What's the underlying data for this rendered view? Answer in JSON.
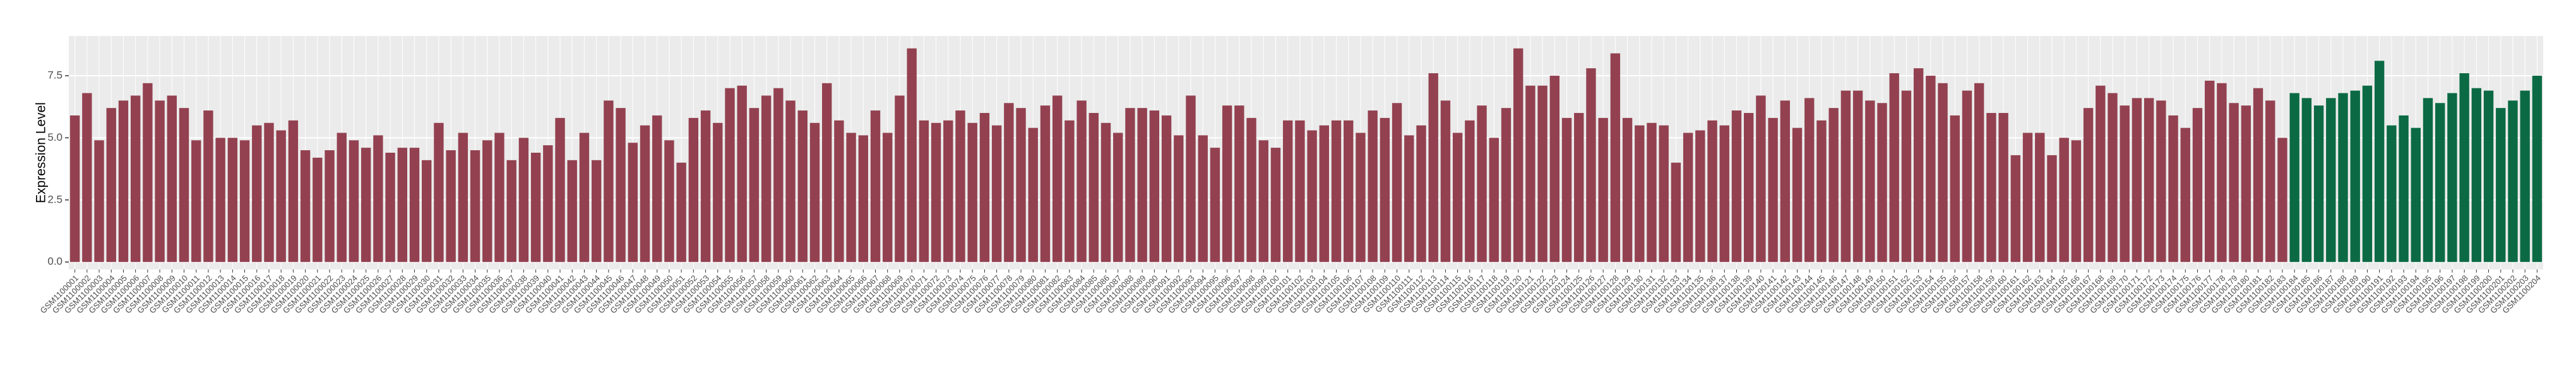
{
  "chart_data": {
    "type": "bar",
    "ylabel": "Expression Level",
    "ylim": [
      -0.3,
      9.1
    ],
    "yticks": [
      {
        "value": 0,
        "label": "0.0"
      },
      2.5,
      {
        "value": 5,
        "label": "5.0"
      },
      7.5
    ],
    "grid": true,
    "categories": [
      "GSM1100001",
      "GSM1100002",
      "GSM1100003",
      "GSM1100004",
      "GSM1100005",
      "GSM1100006",
      "GSM1100007",
      "GSM1100008",
      "GSM1100009",
      "GSM1100010",
      "GSM1100011",
      "GSM1100012",
      "GSM1100013",
      "GSM1100014",
      "GSM1100015",
      "GSM1100016",
      "GSM1100017",
      "GSM1100018",
      "GSM1100019",
      "GSM1100020",
      "GSM1100021",
      "GSM1100022",
      "GSM1100023",
      "GSM1100024",
      "GSM1100025",
      "GSM1100026",
      "GSM1100027",
      "GSM1100028",
      "GSM1100029",
      "GSM1100030",
      "GSM1100031",
      "GSM1100032",
      "GSM1100033",
      "GSM1100034",
      "GSM1100035",
      "GSM1100036",
      "GSM1100037",
      "GSM1100038",
      "GSM1100039",
      "GSM1100040",
      "GSM1100041",
      "GSM1100042",
      "GSM1100043",
      "GSM1100044",
      "GSM1100045",
      "GSM1100046",
      "GSM1100047",
      "GSM1100048",
      "GSM1100049",
      "GSM1100050",
      "GSM1100051",
      "GSM1100052",
      "GSM1100053",
      "GSM1100054",
      "GSM1100055",
      "GSM1100056",
      "GSM1100057",
      "GSM1100058",
      "GSM1100059",
      "GSM1100060",
      "GSM1100061",
      "GSM1100062",
      "GSM1100063",
      "GSM1100064",
      "GSM1100065",
      "GSM1100066",
      "GSM1100067",
      "GSM1100068",
      "GSM1100069",
      "GSM1100070",
      "GSM1100071",
      "GSM1100072",
      "GSM1100073",
      "GSM1100074",
      "GSM1100075",
      "GSM1100076",
      "GSM1100077",
      "GSM1100078",
      "GSM1100079",
      "GSM1100080",
      "GSM1100081",
      "GSM1100082",
      "GSM1100083",
      "GSM1100084",
      "GSM1100085",
      "GSM1100086",
      "GSM1100087",
      "GSM1100088",
      "GSM1100089",
      "GSM1100090",
      "GSM1100091",
      "GSM1100092",
      "GSM1100093",
      "GSM1100094",
      "GSM1100095",
      "GSM1100096",
      "GSM1100097",
      "GSM1100098",
      "GSM1100099",
      "GSM1100100",
      "GSM1100101",
      "GSM1100102",
      "GSM1100103",
      "GSM1100104",
      "GSM1100105",
      "GSM1100106",
      "GSM1100107",
      "GSM1100108",
      "GSM1100109",
      "GSM1100110",
      "GSM1100111",
      "GSM1100112",
      "GSM1100113",
      "GSM1100114",
      "GSM1100115",
      "GSM1100116",
      "GSM1100117",
      "GSM1100118",
      "GSM1100119",
      "GSM1100120",
      "GSM1100121",
      "GSM1100122",
      "GSM1100123",
      "GSM1100124",
      "GSM1100125",
      "GSM1100126",
      "GSM1100127",
      "GSM1100128",
      "GSM1100129",
      "GSM1100130",
      "GSM1100131",
      "GSM1100132",
      "GSM1100133",
      "GSM1100134",
      "GSM1100135",
      "GSM1100136",
      "GSM1100137",
      "GSM1100138",
      "GSM1100139",
      "GSM1100140",
      "GSM1100141",
      "GSM1100142",
      "GSM1100143",
      "GSM1100144",
      "GSM1100145",
      "GSM1100146",
      "GSM1100147",
      "GSM1100148",
      "GSM1100149",
      "GSM1100150",
      "GSM1100151",
      "GSM1100152",
      "GSM1100153",
      "GSM1100154",
      "GSM1100155",
      "GSM1100156",
      "GSM1100157",
      "GSM1100158",
      "GSM1100159",
      "GSM1100160",
      "GSM1100161",
      "GSM1100162",
      "GSM1100163",
      "GSM1100164",
      "GSM1100165",
      "GSM1100166",
      "GSM1100167",
      "GSM1100168",
      "GSM1100169",
      "GSM1100170",
      "GSM1100171",
      "GSM1100172",
      "GSM1100173",
      "GSM1100174",
      "GSM1100175",
      "GSM1100176",
      "GSM1100177",
      "GSM1100178",
      "GSM1100179",
      "GSM1100180",
      "GSM1100181",
      "GSM1100182",
      "GSM1100183",
      "GSM1100184",
      "GSM1100185",
      "GSM1100186",
      "GSM1100187",
      "GSM1100188",
      "GSM1100189",
      "GSM1100190",
      "GSM1100191",
      "GSM1100192",
      "GSM1100193",
      "GSM1100194",
      "GSM1100195",
      "GSM1100196",
      "GSM1100197",
      "GSM1100198",
      "GSM1100199",
      "GSM1100200",
      "GSM1100201",
      "GSM1100202",
      "GSM1100203",
      "GSM1100204"
    ],
    "values": [
      5.9,
      6.8,
      4.9,
      6.2,
      6.5,
      6.7,
      7.2,
      6.5,
      6.7,
      6.2,
      4.9,
      6.1,
      5.0,
      5.0,
      4.9,
      5.5,
      5.6,
      5.3,
      5.7,
      4.5,
      4.2,
      4.5,
      5.2,
      4.9,
      4.6,
      5.1,
      4.4,
      4.6,
      4.6,
      4.1,
      5.6,
      4.5,
      5.2,
      4.5,
      4.9,
      5.2,
      4.1,
      5.0,
      4.4,
      4.7,
      5.8,
      4.1,
      5.2,
      4.1,
      6.5,
      6.2,
      4.8,
      5.5,
      5.9,
      4.9,
      4.0,
      5.8,
      6.1,
      5.6,
      7.0,
      7.1,
      6.2,
      6.7,
      7.0,
      6.5,
      6.1,
      5.6,
      7.2,
      5.7,
      5.2,
      5.1,
      6.1,
      5.2,
      6.7,
      8.6,
      5.7,
      5.6,
      5.7,
      6.1,
      5.6,
      6.0,
      5.5,
      6.4,
      6.2,
      5.4,
      6.3,
      6.7,
      5.7,
      6.5,
      6.0,
      5.6,
      5.2,
      6.2,
      6.2,
      6.1,
      5.9,
      5.1,
      6.7,
      5.1,
      4.6,
      6.3,
      6.3,
      5.8,
      4.9,
      4.6,
      5.7,
      5.7,
      5.3,
      5.5,
      5.7,
      5.7,
      5.2,
      6.1,
      5.8,
      6.4,
      5.1,
      5.5,
      7.6,
      6.5,
      5.2,
      5.7,
      6.3,
      5.0,
      6.2,
      8.6,
      7.1,
      7.1,
      7.5,
      5.8,
      6.0,
      7.8,
      5.8,
      8.4,
      5.8,
      5.5,
      5.6,
      5.5,
      4.0,
      5.2,
      5.3,
      5.7,
      5.5,
      6.1,
      6.0,
      6.7,
      5.8,
      6.5,
      5.4,
      6.6,
      5.7,
      6.2,
      6.9,
      6.9,
      6.5,
      6.4,
      7.6,
      6.9,
      7.8,
      7.5,
      7.2,
      5.9,
      6.9,
      7.2,
      6.0,
      6.0,
      4.3,
      5.2,
      5.2,
      4.3,
      5.0,
      4.9,
      6.2,
      7.1,
      6.8,
      6.3,
      6.6,
      6.6,
      6.5,
      5.9,
      5.4,
      6.2,
      7.3,
      7.2,
      6.4,
      6.3,
      7.0,
      6.5,
      5.0,
      6.8,
      6.6,
      6.3,
      6.6,
      6.8,
      6.9,
      7.1,
      8.1,
      5.5,
      5.9,
      5.4,
      6.6,
      6.4,
      6.8,
      7.6,
      7.0,
      6.9,
      6.2,
      6.5,
      6.9,
      7.5
    ],
    "bar_colors": [
      "#934150",
      "#934150",
      "#934150",
      "#934150",
      "#934150",
      "#934150",
      "#934150",
      "#934150",
      "#934150",
      "#934150",
      "#934150",
      "#934150",
      "#934150",
      "#934150",
      "#934150",
      "#934150",
      "#934150",
      "#934150",
      "#934150",
      "#934150",
      "#934150",
      "#934150",
      "#934150",
      "#934150",
      "#934150",
      "#934150",
      "#934150",
      "#934150",
      "#934150",
      "#934150",
      "#934150",
      "#934150",
      "#934150",
      "#934150",
      "#934150",
      "#934150",
      "#934150",
      "#934150",
      "#934150",
      "#934150",
      "#934150",
      "#934150",
      "#934150",
      "#934150",
      "#934150",
      "#934150",
      "#934150",
      "#934150",
      "#934150",
      "#934150",
      "#934150",
      "#934150",
      "#934150",
      "#934150",
      "#934150",
      "#934150",
      "#934150",
      "#934150",
      "#934150",
      "#934150",
      "#934150",
      "#934150",
      "#934150",
      "#934150",
      "#934150",
      "#934150",
      "#934150",
      "#934150",
      "#934150",
      "#934150",
      "#934150",
      "#934150",
      "#934150",
      "#934150",
      "#934150",
      "#934150",
      "#934150",
      "#934150",
      "#934150",
      "#934150",
      "#934150",
      "#934150",
      "#934150",
      "#934150",
      "#934150",
      "#934150",
      "#934150",
      "#934150",
      "#934150",
      "#934150",
      "#934150",
      "#934150",
      "#934150",
      "#934150",
      "#934150",
      "#934150",
      "#934150",
      "#934150",
      "#934150",
      "#934150",
      "#934150",
      "#934150",
      "#934150",
      "#934150",
      "#934150",
      "#934150",
      "#934150",
      "#934150",
      "#934150",
      "#934150",
      "#934150",
      "#934150",
      "#934150",
      "#934150",
      "#934150",
      "#934150",
      "#934150",
      "#934150",
      "#934150",
      "#934150",
      "#934150",
      "#934150",
      "#934150",
      "#934150",
      "#934150",
      "#934150",
      "#934150",
      "#934150",
      "#934150",
      "#934150",
      "#934150",
      "#934150",
      "#934150",
      "#934150",
      "#934150",
      "#934150",
      "#934150",
      "#934150",
      "#934150",
      "#934150",
      "#934150",
      "#934150",
      "#934150",
      "#934150",
      "#934150",
      "#934150",
      "#934150",
      "#934150",
      "#934150",
      "#934150",
      "#934150",
      "#934150",
      "#934150",
      "#934150",
      "#934150",
      "#934150",
      "#934150",
      "#934150",
      "#934150",
      "#934150",
      "#934150",
      "#934150",
      "#934150",
      "#934150",
      "#934150",
      "#934150",
      "#934150",
      "#934150",
      "#934150",
      "#934150",
      "#934150",
      "#934150",
      "#934150",
      "#934150",
      "#934150",
      "#934150",
      "#934150",
      "#934150",
      "#934150",
      "#934150",
      "#934150",
      "#934150",
      "#934150",
      "#0b6a44",
      "#0b6a44",
      "#0b6a44",
      "#0b6a44",
      "#0b6a44",
      "#0b6a44",
      "#0b6a44",
      "#0b6a44",
      "#0b6a44",
      "#0b6a44",
      "#0b6a44",
      "#0b6a44",
      "#0b6a44",
      "#0b6a44",
      "#0b6a44",
      "#0b6a44",
      "#0b6a44",
      "#0b6a44",
      "#0b6a44",
      "#0b6a44",
      "#0b6a44"
    ]
  }
}
